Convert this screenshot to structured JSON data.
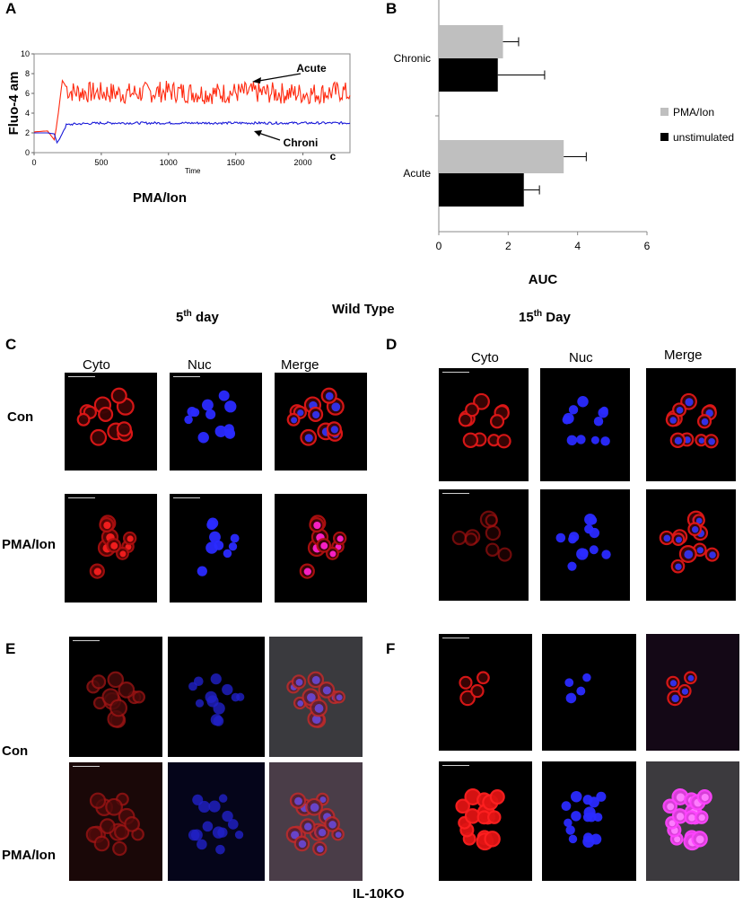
{
  "panels": {
    "a": "A",
    "b": "B",
    "c": "C",
    "d": "D",
    "e": "E",
    "f": "F"
  },
  "chart_data": [
    {
      "type": "line",
      "panel": "A",
      "title": "",
      "subtitle": "PMA/Ion",
      "xlabel": "Time",
      "ylabel": "Fluo-4 am",
      "xlim": [
        0,
        2350
      ],
      "ylim": [
        0,
        10
      ],
      "xticks": [
        0,
        500,
        1000,
        1500,
        2000
      ],
      "yticks": [
        0,
        2,
        4,
        6,
        8,
        10
      ],
      "series": [
        {
          "name": "Acute",
          "color": "#ff2a10",
          "x": [
            0,
            100,
            150,
            165,
            180,
            210,
            260,
            400,
            700,
            1000,
            1300,
            1600,
            1900,
            2100,
            2300,
            2350
          ],
          "y": [
            2.1,
            2.2,
            1.3,
            2.5,
            4.0,
            7.3,
            6.2,
            6.1,
            6.0,
            6.2,
            6.0,
            6.1,
            6.0,
            6.0,
            6.2,
            5.8
          ]
        },
        {
          "name": "Chronic",
          "color": "#1a1ad8",
          "x": [
            0,
            100,
            150,
            170,
            190,
            240,
            300,
            500,
            1000,
            1500,
            2000,
            2350
          ],
          "y": [
            2.0,
            2.0,
            1.9,
            1.0,
            1.4,
            2.8,
            2.9,
            3.0,
            3.0,
            3.0,
            3.0,
            3.0
          ]
        }
      ],
      "annotations": [
        "Acute",
        "Chroni",
        "c"
      ]
    },
    {
      "type": "bar",
      "orientation": "horizontal",
      "panel": "B",
      "xlabel": "AUC",
      "xlim": [
        0,
        6
      ],
      "xticks": [
        0,
        2,
        4,
        6
      ],
      "categories": [
        "Chronic",
        "Acute"
      ],
      "legend_position": "right",
      "series": [
        {
          "name": "PMA/Ion",
          "color": "#bfbfbf",
          "values": [
            1.85,
            3.6
          ],
          "errors": [
            0.45,
            0.65
          ]
        },
        {
          "name": "unstimulated",
          "color": "#000000",
          "values": [
            1.7,
            2.45
          ],
          "errors": [
            1.35,
            0.45
          ]
        }
      ]
    }
  ],
  "headers": {
    "day5": "5",
    "day5_sup": "th",
    "day5_rest": " day",
    "wild_type": "Wild Type",
    "day15": "15",
    "day15_sup": "th",
    "day15_rest": " Day",
    "il10ko": "IL-10KO"
  },
  "columns": {
    "cyto": "Cyto",
    "nuc": "Nuc",
    "merge": "Merge"
  },
  "rows": {
    "con": "Con",
    "pma": "PMA/Ion"
  }
}
